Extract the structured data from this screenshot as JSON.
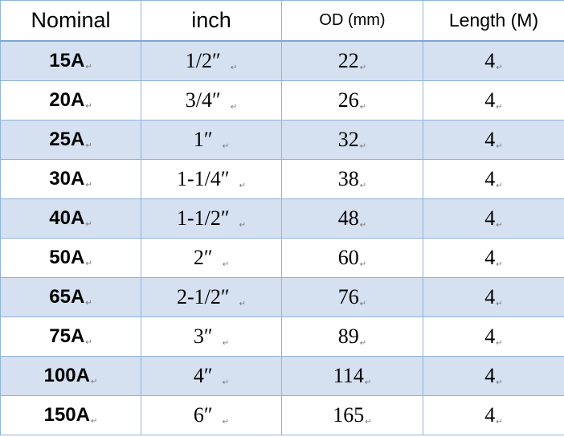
{
  "table": {
    "headers": [
      "Nominal",
      "inch",
      "OD (mm)",
      "Length (M)"
    ],
    "para_mark": "↵",
    "rows": [
      {
        "nominal": "15A",
        "inch": "1/2″",
        "od": "22",
        "length": "4"
      },
      {
        "nominal": "20A",
        "inch": "3/4″",
        "od": "26",
        "length": "4"
      },
      {
        "nominal": "25A",
        "inch": "1″",
        "od": "32",
        "length": "4"
      },
      {
        "nominal": "30A",
        "inch": "1-1/4″",
        "od": "38",
        "length": "4"
      },
      {
        "nominal": "40A",
        "inch": "1-1/2″",
        "od": "48",
        "length": "4"
      },
      {
        "nominal": "50A",
        "inch": "2″",
        "od": "60",
        "length": "4"
      },
      {
        "nominal": "65A",
        "inch": "2-1/2″",
        "od": "76",
        "length": "4"
      },
      {
        "nominal": "75A",
        "inch": "3″",
        "od": "89",
        "length": "4"
      },
      {
        "nominal": "100A",
        "inch": "4″",
        "od": "114",
        "length": "4"
      },
      {
        "nominal": "150A",
        "inch": "6″",
        "od": "165",
        "length": "4"
      }
    ]
  },
  "colors": {
    "band_row": "#d5e0f0",
    "plain_row": "#ffffff",
    "border": "#8fb3dd"
  }
}
